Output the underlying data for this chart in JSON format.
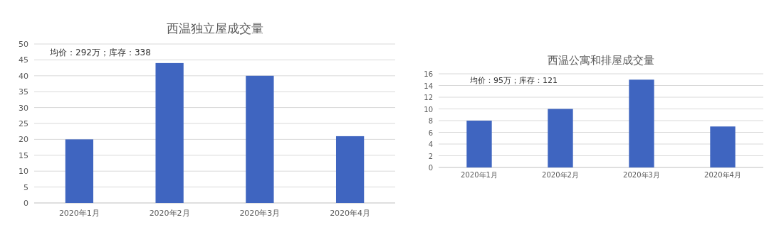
{
  "chart_data": [
    {
      "type": "bar",
      "title": "西温独立屋成交量",
      "categories": [
        "2020年1月",
        "2020年2月",
        "2020年3月",
        "2020年4月"
      ],
      "values": [
        20,
        44,
        40,
        21
      ],
      "color": "#3f65c0",
      "ylim": [
        0,
        50
      ],
      "yticks": [
        0,
        5,
        10,
        15,
        20,
        25,
        30,
        35,
        40,
        45,
        50
      ],
      "grid": "y",
      "annotations": [
        "均价：292万；库存：338"
      ]
    },
    {
      "type": "bar",
      "title": "西温公寓和排屋成交量",
      "categories": [
        "2020年1月",
        "2020年2月",
        "2020年3月",
        "2020年4月"
      ],
      "values": [
        8,
        10,
        15,
        7
      ],
      "color": "#3f65c0",
      "ylim": [
        0,
        16
      ],
      "yticks": [
        0,
        2,
        4,
        6,
        8,
        10,
        12,
        14,
        16
      ],
      "grid": "y",
      "annotations": [
        "均价：95万；库存：121"
      ]
    }
  ]
}
